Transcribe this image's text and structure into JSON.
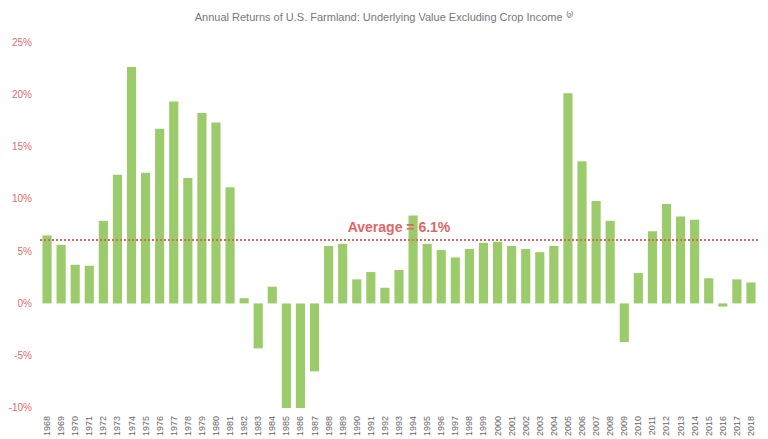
{
  "chart_data": {
    "type": "bar",
    "title": "Annual Returns of U.S. Farmland: Underlying Value Excluding Crop Income ⁽²⁾",
    "categories": [
      "1968",
      "1969",
      "1970",
      "1971",
      "1972",
      "1973",
      "1974",
      "1975",
      "1976",
      "1977",
      "1978",
      "1979",
      "1980",
      "1981",
      "1982",
      "1983",
      "1984",
      "1985",
      "1986",
      "1987",
      "1988",
      "1989",
      "1990",
      "1991",
      "1992",
      "1993",
      "1994",
      "1995",
      "1996",
      "1997",
      "1998",
      "1999",
      "2000",
      "2001",
      "2002",
      "2003",
      "2004",
      "2005",
      "2006",
      "2007",
      "2008",
      "2009",
      "2010",
      "2011",
      "2012",
      "2013",
      "2014",
      "2015",
      "2016",
      "2017",
      "2018"
    ],
    "values": [
      6.5,
      5.6,
      3.7,
      3.6,
      7.9,
      12.3,
      22.6,
      12.5,
      16.7,
      19.3,
      12.0,
      18.2,
      17.3,
      11.1,
      0.5,
      -4.3,
      1.6,
      -10.0,
      -10.0,
      -6.5,
      5.5,
      5.7,
      2.3,
      3.0,
      1.5,
      3.2,
      8.4,
      5.7,
      5.1,
      4.4,
      5.2,
      5.8,
      5.9,
      5.5,
      5.2,
      4.9,
      5.5,
      20.1,
      13.6,
      9.8,
      7.9,
      -3.7,
      2.9,
      6.9,
      9.5,
      8.3,
      8.0,
      2.4,
      -0.3,
      2.3,
      2.0
    ],
    "color": "#9ccb6b",
    "ylim": [
      -10,
      25
    ],
    "yticks": [
      {
        "value": -10,
        "label": "-10%"
      },
      {
        "value": -5,
        "label": "-5%"
      },
      {
        "value": 0,
        "label": "0%"
      },
      {
        "value": 5,
        "label": "5%"
      },
      {
        "value": 10,
        "label": "10%"
      },
      {
        "value": 15,
        "label": "15%"
      },
      {
        "value": 20,
        "label": "20%"
      },
      {
        "value": 25,
        "label": "25%"
      }
    ],
    "annotations": [
      {
        "text": "Average = 6.1%",
        "y": 6.1
      }
    ],
    "grid": false
  }
}
